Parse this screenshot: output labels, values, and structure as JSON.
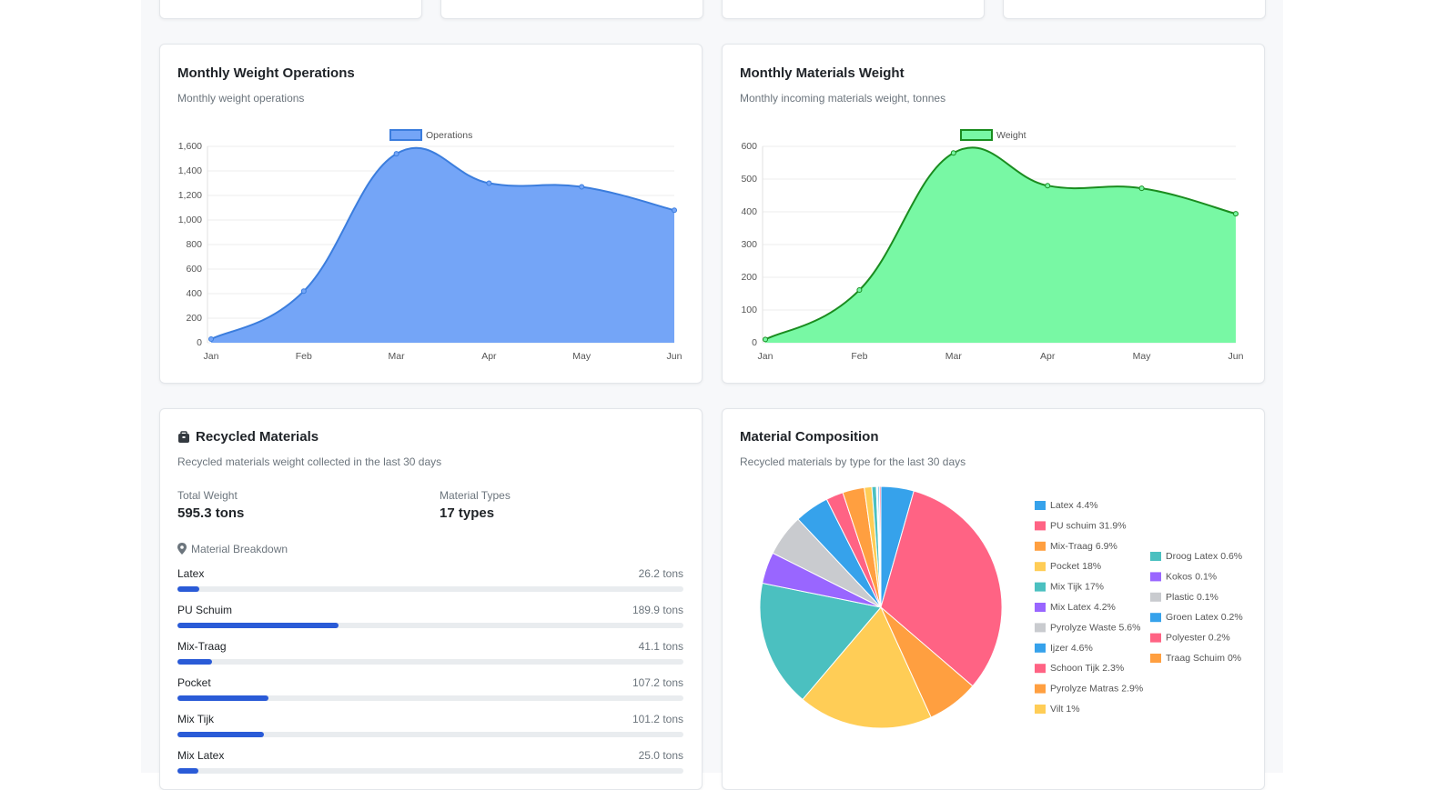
{
  "chart_data": [
    {
      "type": "line",
      "title": "Monthly Weight Operations",
      "subtitle": "Monthly weight operations",
      "categories": [
        "Jan",
        "Feb",
        "Mar",
        "Apr",
        "May",
        "Jun"
      ],
      "series": [
        {
          "name": "Operations",
          "color": "#3b7ddd",
          "fill": "#74a5f7",
          "values": [
            30,
            420,
            1540,
            1300,
            1270,
            1080
          ]
        }
      ],
      "ylim": [
        0,
        1600
      ],
      "yticks": [
        0,
        200,
        400,
        600,
        800,
        {
          "value": 1000,
          "label": "1,000"
        },
        {
          "value": 1200,
          "label": "1,200"
        },
        {
          "value": 1400,
          "label": "1,400"
        },
        {
          "value": 1600,
          "label": "1,600"
        }
      ],
      "grid": true,
      "legend": "top",
      "smooth": true,
      "area": true
    },
    {
      "type": "line",
      "title": "Monthly Materials Weight",
      "subtitle": "Monthly incoming materials weight, tonnes",
      "categories": [
        "Jan",
        "Feb",
        "Mar",
        "Apr",
        "May",
        "Jun"
      ],
      "series": [
        {
          "name": "Weight",
          "color": "#1a8c1f",
          "fill": "#78f8a4",
          "values": [
            10,
            161,
            580,
            480,
            472,
            394
          ]
        }
      ],
      "ylim": [
        0,
        600
      ],
      "yticks": [
        0,
        100,
        200,
        300,
        400,
        500,
        600
      ],
      "grid": true,
      "legend": "top",
      "smooth": true,
      "area": true
    },
    {
      "type": "pie",
      "title": "Material Composition",
      "subtitle": "Recycled materials by type for the last 30 days",
      "categories": [
        "Latex",
        "PU schuim",
        "Mix-Traag",
        "Pocket",
        "Mix Tijk",
        "Mix Latex",
        "Pyrolyze Waste",
        "Ijzer",
        "Schoon Tijk",
        "Pyrolyze Matras",
        "Vilt",
        "Droog Latex",
        "Kokos",
        "Plastic",
        "Groen Latex",
        "Polyester",
        "Traag Schuim"
      ],
      "values": [
        4.4,
        31.9,
        6.9,
        18,
        17,
        4.2,
        5.6,
        4.6,
        2.3,
        2.9,
        1,
        0.6,
        0.1,
        0.1,
        0.2,
        0.2,
        0
      ],
      "value_labels": [
        "4.4%",
        "31.9%",
        "6.9%",
        "18%",
        "17%",
        "4.2%",
        "5.6%",
        "4.6%",
        "2.3%",
        "2.9%",
        "1%",
        "0.6%",
        "0.1%",
        "0.1%",
        "0.2%",
        "0.2%",
        "0%"
      ],
      "colors": [
        "#36a2eb",
        "#ff6384",
        "#ff9f40",
        "#ffcd56",
        "#4bc0c0",
        "#9966ff",
        "#c9cbcf",
        "#36a2eb",
        "#ff6384",
        "#ff9f40",
        "#ffcd56",
        "#4bc0c0",
        "#9966ff",
        "#c9cbcf",
        "#36a2eb",
        "#ff6384",
        "#ff9f40"
      ],
      "legend": "right"
    }
  ],
  "recycled_materials": {
    "title": "Recycled Materials",
    "subtitle": "Recycled materials weight collected in the last 30 days",
    "total_weight": {
      "label": "Total Weight",
      "value": 595.3,
      "value_label": "595.3 tons"
    },
    "material_types": {
      "label": "Material Types",
      "value": 17,
      "value_label": "17 types"
    },
    "breakdown": {
      "title": "Material Breakdown",
      "items": [
        {
          "name": "Latex",
          "value": 26.2,
          "value_label": "26.2 tons"
        },
        {
          "name": "PU Schuim",
          "value": 189.9,
          "value_label": "189.9 tons"
        },
        {
          "name": "Mix-Traag",
          "value": 41.1,
          "value_label": "41.1 tons"
        },
        {
          "name": "Pocket",
          "value": 107.2,
          "value_label": "107.2 tons"
        },
        {
          "name": "Mix Tijk",
          "value": 101.2,
          "value_label": "101.2 tons"
        },
        {
          "name": "Mix Latex",
          "value": 25.0,
          "value_label": "25.0 tons"
        }
      ]
    }
  }
}
